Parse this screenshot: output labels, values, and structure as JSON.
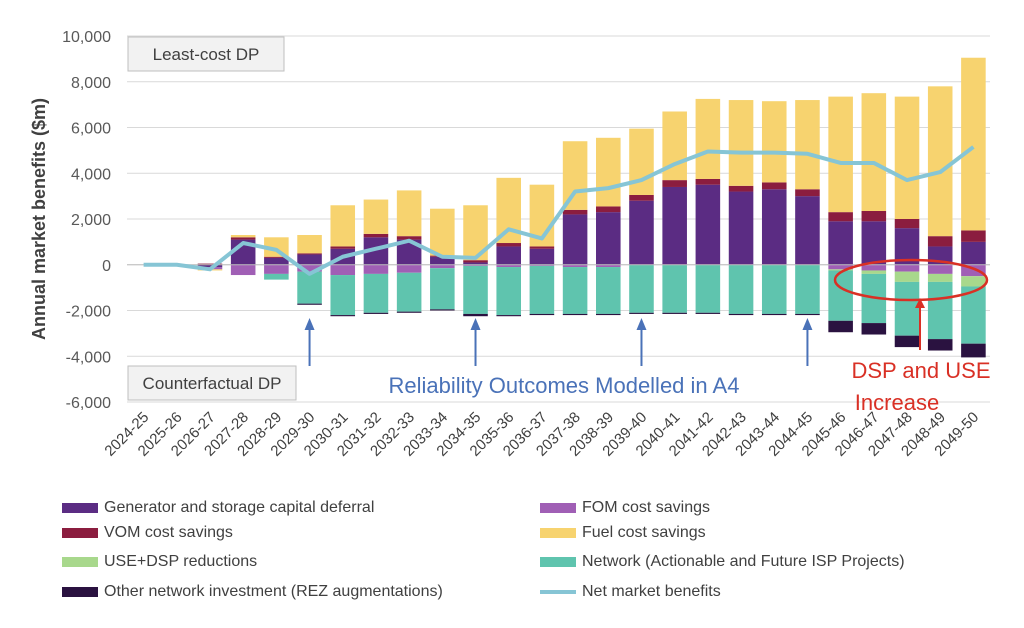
{
  "chart_data": {
    "type": "bar",
    "stacked": true,
    "ylabel": "Annual market benefits ($m)",
    "ylim": [
      -6000,
      10000
    ],
    "yticks": [
      -6000,
      -4000,
      -2000,
      0,
      2000,
      4000,
      6000,
      8000,
      10000
    ],
    "ytick_labels": [
      "-6,000",
      "-4,000",
      "-2,000",
      "0",
      "2,000",
      "4,000",
      "6,000",
      "8,000",
      "10,000"
    ],
    "grid": true,
    "legend_position": "bottom",
    "categories": [
      "2024-25",
      "2025-26",
      "2026-27",
      "2027-28",
      "2028-29",
      "2029-30",
      "2030-31",
      "2031-32",
      "2032-33",
      "2033-34",
      "2034-35",
      "2035-36",
      "2036-37",
      "2037-38",
      "2038-39",
      "2039-40",
      "2040-41",
      "2041-42",
      "2042-43",
      "2043-44",
      "2044-45",
      "2045-46",
      "2046-47",
      "2047-48",
      "2048-49",
      "2049-50"
    ],
    "series": [
      {
        "name": "Generator and storage capital deferral",
        "color": "#5b2c83",
        "values": [
          0,
          0,
          -100,
          1100,
          300,
          450,
          700,
          1200,
          1100,
          350,
          100,
          800,
          700,
          2200,
          2300,
          2800,
          3400,
          3500,
          3200,
          3300,
          3000,
          1900,
          1900,
          1600,
          800,
          1000
        ]
      },
      {
        "name": "FOM cost savings",
        "color": "#a05fb5",
        "values": [
          0,
          0,
          -100,
          -450,
          -400,
          -300,
          -450,
          -400,
          -350,
          -150,
          -50,
          -100,
          -50,
          -100,
          -100,
          0,
          0,
          0,
          0,
          0,
          0,
          -200,
          -250,
          -300,
          -400,
          -500
        ]
      },
      {
        "name": "VOM cost savings",
        "color": "#8b1d3f",
        "values": [
          0,
          0,
          50,
          100,
          50,
          50,
          100,
          150,
          150,
          50,
          100,
          150,
          100,
          200,
          250,
          250,
          300,
          250,
          250,
          300,
          300,
          400,
          450,
          400,
          450,
          500
        ]
      },
      {
        "name": "Fuel cost savings",
        "color": "#f7d36f",
        "values": [
          0,
          0,
          -50,
          100,
          850,
          800,
          1800,
          1500,
          2000,
          2050,
          2400,
          2850,
          2700,
          3000,
          3000,
          2900,
          3000,
          3500,
          3750,
          3550,
          3900,
          5050,
          5150,
          5350,
          6550,
          7550
        ]
      },
      {
        "name": "USE+DSP reductions",
        "color": "#a8d88c",
        "values": [
          0,
          0,
          0,
          0,
          0,
          0,
          0,
          0,
          0,
          0,
          0,
          0,
          0,
          0,
          0,
          0,
          0,
          0,
          0,
          0,
          0,
          -50,
          -150,
          -450,
          -350,
          -450
        ]
      },
      {
        "name": "Network (Actionable and Future ISP Projects)",
        "color": "#5fc4ae",
        "values": [
          0,
          0,
          0,
          0,
          -250,
          -1400,
          -1750,
          -1700,
          -1700,
          -1800,
          -2100,
          -2100,
          -2100,
          -2050,
          -2050,
          -2100,
          -2100,
          -2100,
          -2150,
          -2150,
          -2150,
          -2200,
          -2150,
          -2350,
          -2500,
          -2500
        ]
      },
      {
        "name": "Other network investment (REZ augmentations)",
        "color": "#2a1240",
        "values": [
          0,
          0,
          0,
          0,
          0,
          -50,
          -50,
          -50,
          -50,
          -50,
          -100,
          -50,
          -50,
          -50,
          -50,
          -50,
          -50,
          -50,
          -50,
          -50,
          -50,
          -500,
          -500,
          -500,
          -500,
          -600
        ]
      }
    ],
    "line_series": {
      "name": "Net market benefits",
      "color": "#86c5d5",
      "values": [
        0,
        0,
        -200,
        950,
        650,
        -400,
        350,
        700,
        1050,
        350,
        300,
        1550,
        1150,
        3200,
        3350,
        3700,
        4400,
        4950,
        4900,
        4900,
        4850,
        4450,
        4450,
        3700,
        4050,
        5150
      ]
    },
    "annotations": {
      "top_box": "Least-cost DP",
      "bottom_box": "Counterfactual DP",
      "reliability_label": "Reliability Outcomes Modelled in A4",
      "dsp_label_line1": "DSP and USE",
      "dsp_label_line2": "Increase",
      "arrow_color": "#4a72b8",
      "highlight_color": "#d93025"
    },
    "reliability_arrow_years": [
      "2029-30",
      "2034-35",
      "2039-40",
      "2044-45"
    ]
  }
}
